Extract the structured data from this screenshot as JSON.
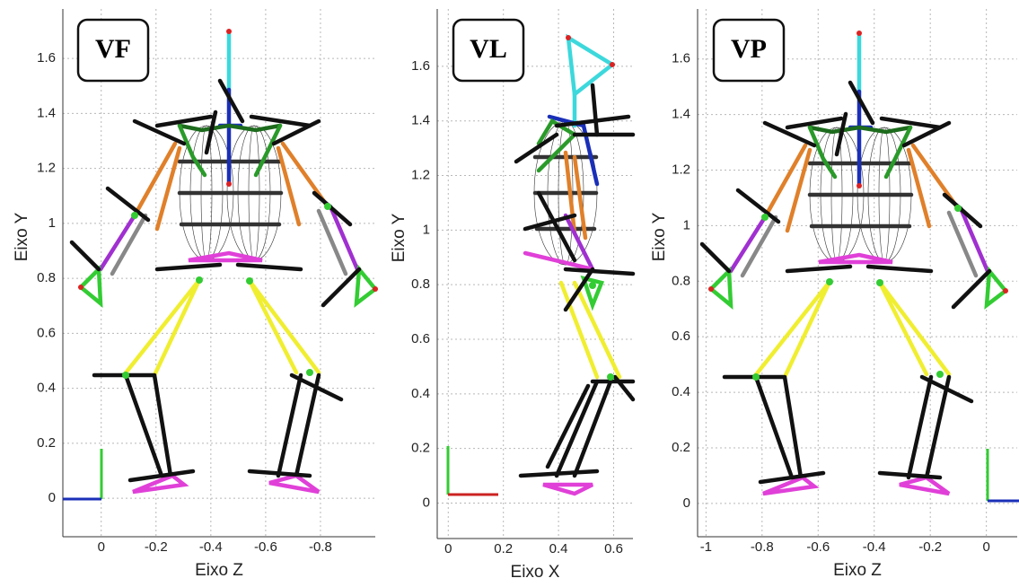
{
  "figure": {
    "panels": [
      {
        "label": "VF",
        "xlabel": "Eixo Z",
        "ylabel": "Eixo Y",
        "xlim": [
          0.14,
          -1.0
        ],
        "ylim": [
          -0.14,
          1.78
        ],
        "xticks": [
          0,
          -0.2,
          -0.4,
          -0.6,
          -0.8
        ],
        "yticks": [
          0,
          0.2,
          0.4,
          0.6,
          0.8,
          1,
          1.2,
          1.4,
          1.6
        ]
      },
      {
        "label": "VL",
        "xlabel": "Eixo X",
        "ylabel": "Eixo Y",
        "xlim": [
          -0.04,
          0.67
        ],
        "ylim": [
          -0.13,
          1.81
        ],
        "xticks": [
          0,
          0.2,
          0.4,
          0.6
        ],
        "yticks": [
          0,
          0.2,
          0.4,
          0.6,
          0.8,
          1,
          1.2,
          1.4,
          1.6
        ]
      },
      {
        "label": "VP",
        "xlabel": "Eixo Z",
        "ylabel": "Eixo Y",
        "xlim": [
          -1.03,
          0.11
        ],
        "ylim": [
          -0.12,
          1.78
        ],
        "xticks": [
          -1,
          -0.8,
          -0.6,
          -0.4,
          -0.2,
          0
        ],
        "yticks": [
          0,
          0.2,
          0.4,
          0.6,
          0.8,
          1,
          1.2,
          1.4,
          1.6
        ]
      }
    ]
  }
}
